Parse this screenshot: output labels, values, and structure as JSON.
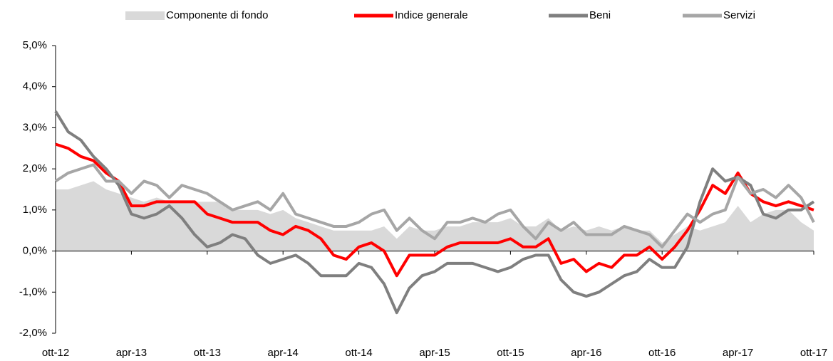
{
  "chart_data": {
    "type": "line",
    "categories": [
      "ott-12",
      null,
      null,
      null,
      null,
      null,
      "apr-13",
      null,
      null,
      null,
      null,
      null,
      "ott-13",
      null,
      null,
      null,
      null,
      null,
      "apr-14",
      null,
      null,
      null,
      null,
      null,
      "ott-14",
      null,
      null,
      null,
      null,
      null,
      "apr-15",
      null,
      null,
      null,
      null,
      null,
      "ott-15",
      null,
      null,
      null,
      null,
      null,
      "apr-16",
      null,
      null,
      null,
      null,
      null,
      "ott-16",
      null,
      null,
      null,
      null,
      null,
      "apr-17",
      null,
      null,
      null,
      null,
      null,
      "ott-17"
    ],
    "series": [
      {
        "name": "Componente di fondo",
        "style": "area",
        "color": "#d9d9d9",
        "values": [
          1.5,
          1.5,
          1.6,
          1.7,
          1.5,
          1.4,
          1.3,
          1.2,
          1.3,
          1.2,
          1.2,
          1.2,
          1.2,
          1.2,
          1.0,
          1.0,
          1.0,
          0.9,
          1.0,
          0.8,
          0.7,
          0.6,
          0.5,
          0.5,
          0.5,
          0.5,
          0.6,
          0.3,
          0.6,
          0.5,
          0.5,
          0.6,
          0.6,
          0.7,
          0.7,
          0.7,
          0.8,
          0.6,
          0.6,
          0.8,
          0.5,
          0.6,
          0.5,
          0.6,
          0.5,
          0.6,
          0.5,
          0.5,
          0.2,
          0.4,
          0.6,
          0.5,
          0.6,
          0.7,
          1.1,
          0.7,
          0.9,
          1.0,
          1.0,
          0.7,
          0.5
        ]
      },
      {
        "name": "Indice generale",
        "style": "line",
        "color": "#ff0000",
        "values": [
          2.6,
          2.5,
          2.3,
          2.2,
          1.9,
          1.7,
          1.1,
          1.1,
          1.2,
          1.2,
          1.2,
          1.2,
          0.9,
          0.8,
          0.7,
          0.7,
          0.7,
          0.5,
          0.4,
          0.6,
          0.5,
          0.3,
          -0.1,
          -0.2,
          0.1,
          0.2,
          0.0,
          -0.6,
          -0.1,
          -0.1,
          -0.1,
          0.1,
          0.2,
          0.2,
          0.2,
          0.2,
          0.3,
          0.1,
          0.1,
          0.3,
          -0.3,
          -0.2,
          -0.5,
          -0.3,
          -0.4,
          -0.1,
          -0.1,
          0.1,
          -0.2,
          0.1,
          0.5,
          1.0,
          1.6,
          1.4,
          1.9,
          1.4,
          1.2,
          1.1,
          1.2,
          1.1,
          1.0
        ]
      },
      {
        "name": "Beni",
        "style": "line",
        "color": "#7f7f7f",
        "values": [
          3.4,
          2.9,
          2.7,
          2.3,
          2.0,
          1.6,
          0.9,
          0.8,
          0.9,
          1.1,
          0.8,
          0.4,
          0.1,
          0.2,
          0.4,
          0.3,
          -0.1,
          -0.3,
          -0.2,
          -0.1,
          -0.3,
          -0.6,
          -0.6,
          -0.6,
          -0.3,
          -0.4,
          -0.8,
          -1.5,
          -0.9,
          -0.6,
          -0.5,
          -0.3,
          -0.3,
          -0.3,
          -0.4,
          -0.5,
          -0.4,
          -0.2,
          -0.1,
          -0.1,
          -0.7,
          -1.0,
          -1.1,
          -1.0,
          -0.8,
          -0.6,
          -0.5,
          -0.2,
          -0.4,
          -0.4,
          0.1,
          1.2,
          2.0,
          1.7,
          1.8,
          1.6,
          0.9,
          0.8,
          1.0,
          1.0,
          1.2
        ]
      },
      {
        "name": "Servizi",
        "style": "line",
        "color": "#a6a6a6",
        "values": [
          1.7,
          1.9,
          2.0,
          2.1,
          1.7,
          1.7,
          1.4,
          1.7,
          1.6,
          1.3,
          1.6,
          1.5,
          1.4,
          1.2,
          1.0,
          1.1,
          1.2,
          1.0,
          1.4,
          0.9,
          0.8,
          0.7,
          0.6,
          0.6,
          0.7,
          0.9,
          1.0,
          0.5,
          0.8,
          0.5,
          0.3,
          0.7,
          0.7,
          0.8,
          0.7,
          0.9,
          1.0,
          0.6,
          0.3,
          0.7,
          0.5,
          0.7,
          0.4,
          0.4,
          0.4,
          0.6,
          0.5,
          0.4,
          0.1,
          0.5,
          0.9,
          0.7,
          0.9,
          1.0,
          1.8,
          1.4,
          1.5,
          1.3,
          1.6,
          1.3,
          0.7
        ]
      }
    ],
    "ylim": [
      -2,
      5
    ],
    "yticks": [
      {
        "value": -2,
        "label": "-2,0%"
      },
      {
        "value": -1,
        "label": "-1,0%"
      },
      {
        "value": 0,
        "label": "0,0%"
      },
      {
        "value": 1,
        "label": "1,0%"
      },
      {
        "value": 2,
        "label": "2,0%"
      },
      {
        "value": 3,
        "label": "3,0%"
      },
      {
        "value": 4,
        "label": "4,0%"
      },
      {
        "value": 5,
        "label": "5,0%"
      }
    ],
    "legend": "top"
  }
}
